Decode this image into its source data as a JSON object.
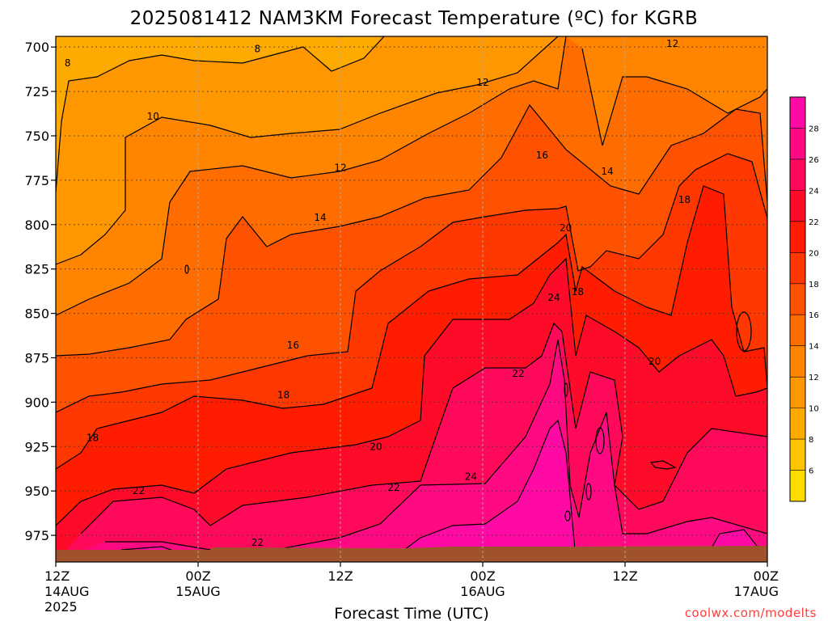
{
  "chart_data": {
    "type": "heatmap",
    "title": "2025081412 NAM3KM Forecast Temperature (ºC) for KGRB",
    "xlabel": "Forecast Time (UTC)",
    "ylabel": "",
    "credit": "coolwx.com/modelts",
    "x_ticks": [
      {
        "hour": 0,
        "line1": "12Z",
        "line2": "14AUG",
        "line3": "2025"
      },
      {
        "hour": 12,
        "line1": "00Z",
        "line2": "15AUG",
        "line3": ""
      },
      {
        "hour": 24,
        "line1": "12Z",
        "line2": "",
        "line3": ""
      },
      {
        "hour": 36,
        "line1": "00Z",
        "line2": "16AUG",
        "line3": ""
      },
      {
        "hour": 48,
        "line1": "12Z",
        "line2": "",
        "line3": ""
      },
      {
        "hour": 60,
        "line1": "00Z",
        "line2": "17AUG",
        "line3": ""
      }
    ],
    "xlim": [
      0,
      60
    ],
    "y_ticks": [
      700,
      725,
      750,
      775,
      800,
      825,
      850,
      875,
      900,
      925,
      950,
      975
    ],
    "ylim": [
      694,
      990
    ],
    "y_reversed": true,
    "grid": true,
    "surface_pressure_hpa": 984,
    "colorbar": {
      "levels": [
        4,
        6,
        8,
        10,
        12,
        14,
        16,
        18,
        20,
        22,
        24,
        26,
        28,
        30
      ],
      "tick_labels": [
        "6",
        "8",
        "10",
        "12",
        "14",
        "16",
        "18",
        "20",
        "22",
        "24",
        "26",
        "28"
      ],
      "colors": [
        "#ffdc00",
        "#ffc400",
        "#ffaa00",
        "#ff9700",
        "#ff8400",
        "#ff6c00",
        "#ff5200",
        "#ff3700",
        "#ff1c00",
        "#ff0a28",
        "#ff0a5a",
        "#ff0a82",
        "#ff0aa5"
      ]
    },
    "contour_labels": [
      {
        "value": "8",
        "hour": 1.0,
        "p": 709
      },
      {
        "value": "8",
        "hour": 17.0,
        "p": 701
      },
      {
        "value": "10",
        "hour": 8.2,
        "p": 739
      },
      {
        "value": "12",
        "hour": 36.0,
        "p": 720
      },
      {
        "value": "12",
        "hour": 52.0,
        "p": 698
      },
      {
        "value": "12",
        "hour": 24.0,
        "p": 768
      },
      {
        "value": "14",
        "hour": 22.3,
        "p": 796
      },
      {
        "value": "14",
        "hour": 46.5,
        "p": 770
      },
      {
        "value": "16",
        "hour": 20.0,
        "p": 868
      },
      {
        "value": "16",
        "hour": 41.0,
        "p": 761
      },
      {
        "value": "18",
        "hour": 3.1,
        "p": 920
      },
      {
        "value": "18",
        "hour": 19.2,
        "p": 896
      },
      {
        "value": "18",
        "hour": 44.0,
        "p": 838
      },
      {
        "value": "18",
        "hour": 53.0,
        "p": 786
      },
      {
        "value": "20",
        "hour": 27.0,
        "p": 925
      },
      {
        "value": "20",
        "hour": 43.0,
        "p": 802
      },
      {
        "value": "20",
        "hour": 50.5,
        "p": 877
      },
      {
        "value": "22",
        "hour": 7.0,
        "p": 950
      },
      {
        "value": "22",
        "hour": 28.5,
        "p": 948
      },
      {
        "value": "22",
        "hour": 17.0,
        "p": 979
      },
      {
        "value": "22",
        "hour": 39.0,
        "p": 884
      },
      {
        "value": "24",
        "hour": 35.0,
        "p": 942
      },
      {
        "value": "24",
        "hour": 42.0,
        "p": 841
      }
    ]
  }
}
